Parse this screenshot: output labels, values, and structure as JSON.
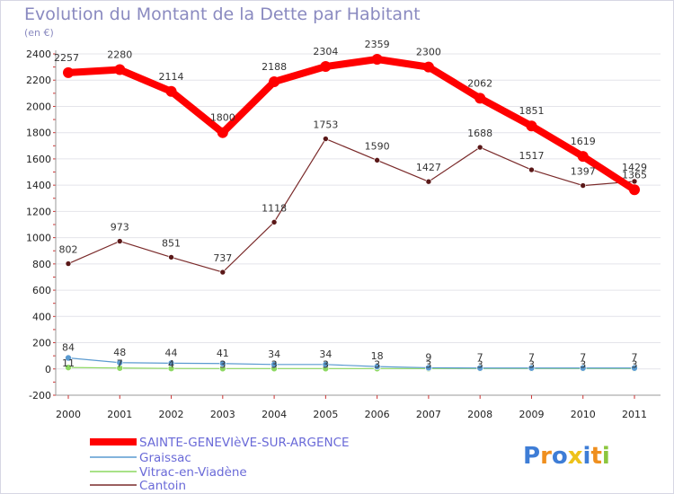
{
  "chart_data": {
    "type": "line",
    "title": "Evolution du Montant de la Dette par Habitant",
    "unit_label": "(en €)",
    "categories": [
      "2000",
      "2001",
      "2002",
      "2003",
      "2004",
      "2005",
      "2006",
      "2007",
      "2008",
      "2009",
      "2010",
      "2011"
    ],
    "ylim": [
      -200,
      2400
    ],
    "yticks": [
      -200,
      0,
      200,
      400,
      600,
      800,
      1000,
      1200,
      1400,
      1600,
      1800,
      2000,
      2200,
      2400
    ],
    "grid": "horizontal",
    "legend_position": "bottom-left",
    "series": [
      {
        "name": "SAINTE-GENEVIèVE-SUR-ARGENCE",
        "color": "#ff0000",
        "values": [
          2257,
          2280,
          2114,
          1800,
          2188,
          2304,
          2359,
          2300,
          2062,
          1851,
          1619,
          1365
        ]
      },
      {
        "name": "Graissac",
        "color": "#5a9ad0",
        "values": [
          84,
          48,
          44,
          41,
          34,
          34,
          18,
          9,
          7,
          7,
          7,
          7
        ]
      },
      {
        "name": "Vitrac-en-Viadène",
        "color": "#8cd860",
        "values": [
          11,
          7,
          4,
          3,
          3,
          3,
          3,
          3,
          3,
          3,
          3,
          3
        ]
      },
      {
        "name": "Cantoin",
        "color": "#7a2a2a",
        "values": [
          802,
          973,
          851,
          737,
          1118,
          1753,
          1590,
          1427,
          1688,
          1517,
          1397,
          1429
        ]
      }
    ]
  },
  "brand": {
    "letters": [
      "P",
      "r",
      "o",
      "x",
      "i",
      "t",
      "i"
    ],
    "colors": [
      "#3e7dd6",
      "#ef8f1e",
      "#3e7dd6",
      "#eec21a",
      "#3e7dd6",
      "#ef8f1e",
      "#8cc63e"
    ]
  }
}
